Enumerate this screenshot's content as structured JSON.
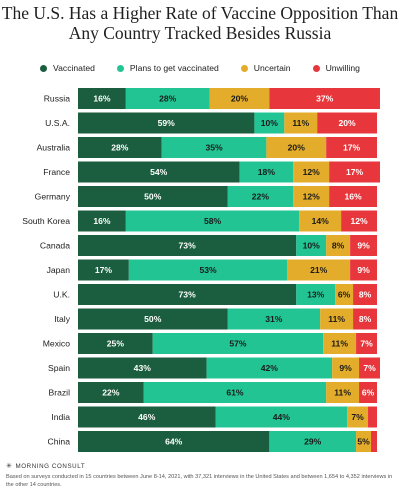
{
  "header": {
    "title_line1": "The U.S. Has a Higher Rate of Vaccine Opposition Than",
    "title_line2": "Any Country Tracked Besides Russia"
  },
  "footer": {
    "brand": "MORNING CONSULT",
    "brand_icon": "star-logo-icon",
    "note": "Based on surveys conducted in 15 countries between June 8-14, 2021, with 37,321 interviews in the United States and between 1,654 to 4,352 interviews in the other 14 countries."
  },
  "chart_data": {
    "type": "bar",
    "orientation": "horizontal",
    "stacked": true,
    "title": "The U.S. Has a Higher Rate of Vaccine Opposition Than Any Country Tracked Besides Russia",
    "legend_position": "top",
    "grid": false,
    "xlim": [
      0,
      100
    ],
    "value_suffix": "%",
    "categories": [
      "Russia",
      "U.S.A.",
      "Australia",
      "France",
      "Germany",
      "South Korea",
      "Canada",
      "Japan",
      "U.K.",
      "Italy",
      "Mexico",
      "Spain",
      "Brazil",
      "India",
      "China"
    ],
    "series": [
      {
        "name": "Vaccinated",
        "color": "#1b5e3f",
        "label_color": "#ffffff",
        "values": [
          16,
          59,
          28,
          54,
          50,
          16,
          73,
          17,
          73,
          50,
          25,
          43,
          22,
          46,
          64
        ]
      },
      {
        "name": "Plans to get vaccinated",
        "color": "#22c493",
        "label_color": "#1a1a1a",
        "values": [
          28,
          10,
          35,
          18,
          22,
          58,
          10,
          53,
          13,
          31,
          57,
          42,
          61,
          44,
          29
        ]
      },
      {
        "name": "Uncertain",
        "color": "#e3ac2a",
        "label_color": "#1a1a1a",
        "values": [
          20,
          11,
          20,
          12,
          12,
          14,
          8,
          21,
          6,
          11,
          11,
          9,
          11,
          7,
          5
        ]
      },
      {
        "name": "Unwilling",
        "color": "#e8373c",
        "label_color": "#ffffff",
        "values": [
          37,
          20,
          17,
          17,
          16,
          12,
          9,
          9,
          8,
          8,
          7,
          7,
          6,
          3,
          2
        ]
      }
    ]
  }
}
